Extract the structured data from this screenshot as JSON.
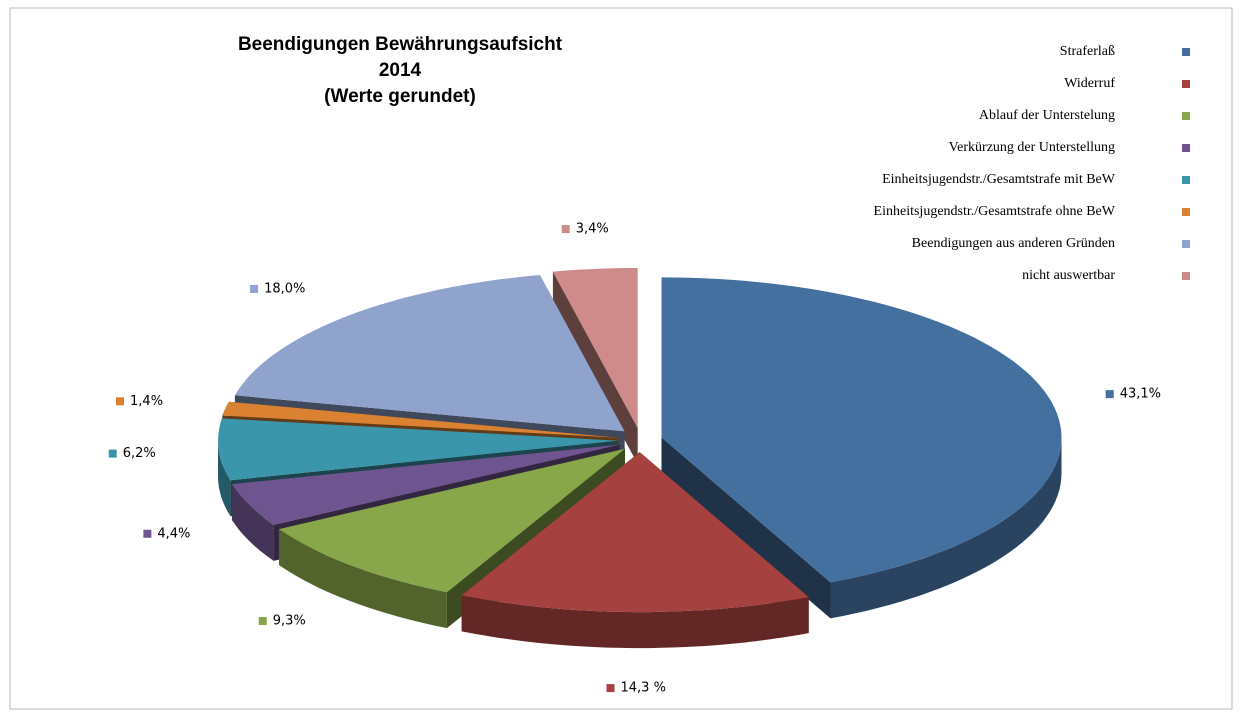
{
  "chart_data": {
    "type": "pie3d",
    "title_lines": [
      "Beendigungen Bewährungsaufsicht",
      "2014",
      "(Werte gerundet)"
    ],
    "categories": [
      "Straferlaß",
      "Widerruf",
      "Ablauf der Unterstelung",
      "Verkürzung  der Unterstellung",
      "Einheitsjugendstr./Gesamtstrafe  mit BeW",
      "Einheitsjugendstr./Gesamtstrafe  ohne BeW",
      "Beendigungen  aus anderen Gründen",
      "nicht auswertbar"
    ],
    "values": [
      43.1,
      14.3,
      9.3,
      4.4,
      6.2,
      1.4,
      18.0,
      3.4
    ],
    "value_labels": [
      "43,1%",
      "14,3 %",
      "9,3%",
      "4,4%",
      "6,2%",
      "1,4%",
      "18,0%",
      "3,4%"
    ],
    "colors": [
      "#4470a0",
      "#a5423f",
      "#88a64a",
      "#6f558f",
      "#3b96ab",
      "#db8232",
      "#8fa3cc",
      "#ce8b8a"
    ],
    "legend": "right"
  }
}
